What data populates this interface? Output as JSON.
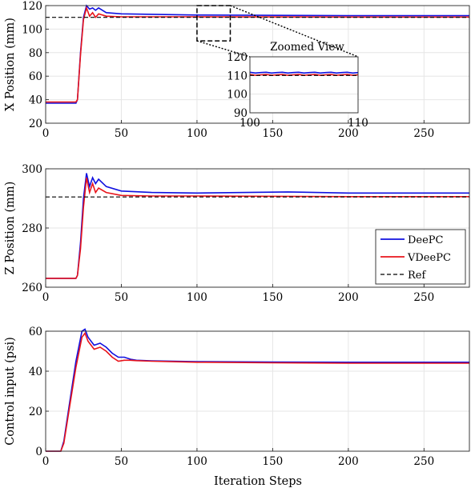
{
  "colors": {
    "deepc": "#1010e0",
    "vdeepc": "#e8141b",
    "ref": "#000000"
  },
  "legend": {
    "placement": "bottom-right of second panel",
    "entries": [
      "DeePC",
      "VDeePC",
      "Ref"
    ]
  },
  "x_axis_label": "Iteration Steps",
  "inset": {
    "title": "Zoomed View",
    "xlim": [
      100,
      110
    ],
    "ylim": [
      90,
      120
    ]
  },
  "chart_data": [
    {
      "type": "line",
      "ylabel": "X Position (mm)",
      "xlim": [
        0,
        280
      ],
      "ylim": [
        20,
        120
      ],
      "xticks": [
        0,
        50,
        100,
        150,
        200,
        250
      ],
      "yticks": [
        20,
        40,
        60,
        80,
        100,
        120
      ],
      "grid": true,
      "series": [
        {
          "name": "DeePC",
          "x": [
            0,
            20,
            21,
            23,
            25,
            27,
            29,
            31,
            33,
            35,
            40,
            50,
            100,
            200,
            280
          ],
          "y": [
            37,
            37,
            40,
            80,
            110,
            120,
            117,
            118,
            116,
            118,
            114,
            113,
            112,
            111.5,
            111.5
          ]
        },
        {
          "name": "VDeePC",
          "x": [
            0,
            20,
            21,
            23,
            25,
            27,
            29,
            31,
            33,
            35,
            40,
            50,
            100,
            200,
            280
          ],
          "y": [
            38,
            38,
            40,
            78,
            108,
            118,
            111,
            114,
            110,
            113,
            111,
            110.5,
            110.5,
            110.3,
            110.3
          ]
        },
        {
          "name": "Ref",
          "x": [
            0,
            280
          ],
          "y": [
            110,
            110
          ]
        }
      ]
    },
    {
      "type": "line",
      "ylabel": "Z Position (mm)",
      "xlim": [
        0,
        280
      ],
      "ylim": [
        260,
        300
      ],
      "xticks": [
        0,
        50,
        100,
        150,
        200,
        250
      ],
      "yticks": [
        260,
        280,
        300
      ],
      "grid": true,
      "series": [
        {
          "name": "DeePC",
          "x": [
            0,
            20,
            21,
            23,
            25,
            27,
            29,
            31,
            33,
            35,
            40,
            50,
            70,
            100,
            160,
            200,
            280
          ],
          "y": [
            263,
            263,
            264,
            275,
            290,
            298.5,
            294,
            297,
            295,
            296.5,
            294,
            292.5,
            292,
            291.8,
            292.2,
            291.8,
            291.8
          ]
        },
        {
          "name": "VDeePC",
          "x": [
            0,
            20,
            21,
            23,
            25,
            27,
            29,
            31,
            33,
            35,
            40,
            50,
            70,
            100,
            200,
            280
          ],
          "y": [
            263,
            263,
            264,
            273,
            287,
            297,
            292,
            295,
            292,
            293.5,
            292,
            291,
            290.8,
            290.8,
            290.6,
            290.6
          ]
        },
        {
          "name": "Ref",
          "x": [
            0,
            280
          ],
          "y": [
            290.5,
            290.5
          ]
        }
      ]
    },
    {
      "type": "line",
      "ylabel": "Control input (psi)",
      "xlabel": "Iteration Steps",
      "xlim": [
        0,
        280
      ],
      "ylim": [
        0,
        60
      ],
      "xticks": [
        0,
        50,
        100,
        150,
        200,
        250
      ],
      "yticks": [
        0,
        20,
        40,
        60
      ],
      "grid": true,
      "series": [
        {
          "name": "DeePC",
          "x": [
            0,
            10,
            12,
            16,
            20,
            24,
            26,
            28,
            32,
            36,
            40,
            44,
            48,
            52,
            56,
            60,
            70,
            100,
            150,
            200,
            280
          ],
          "y": [
            0,
            0,
            5,
            25,
            45,
            60,
            61,
            57,
            53,
            54,
            52,
            49,
            47,
            47,
            46,
            45.5,
            45.2,
            44.8,
            44.6,
            44.5,
            44.5
          ]
        },
        {
          "name": "VDeePC",
          "x": [
            0,
            10,
            12,
            16,
            20,
            24,
            26,
            28,
            32,
            36,
            40,
            44,
            48,
            52,
            56,
            60,
            70,
            100,
            150,
            200,
            280
          ],
          "y": [
            0,
            0,
            4,
            23,
            42,
            57,
            59,
            55,
            51,
            52,
            50,
            47,
            45,
            45.5,
            45.5,
            45.3,
            45,
            44.5,
            44.2,
            44,
            44
          ]
        }
      ]
    }
  ]
}
